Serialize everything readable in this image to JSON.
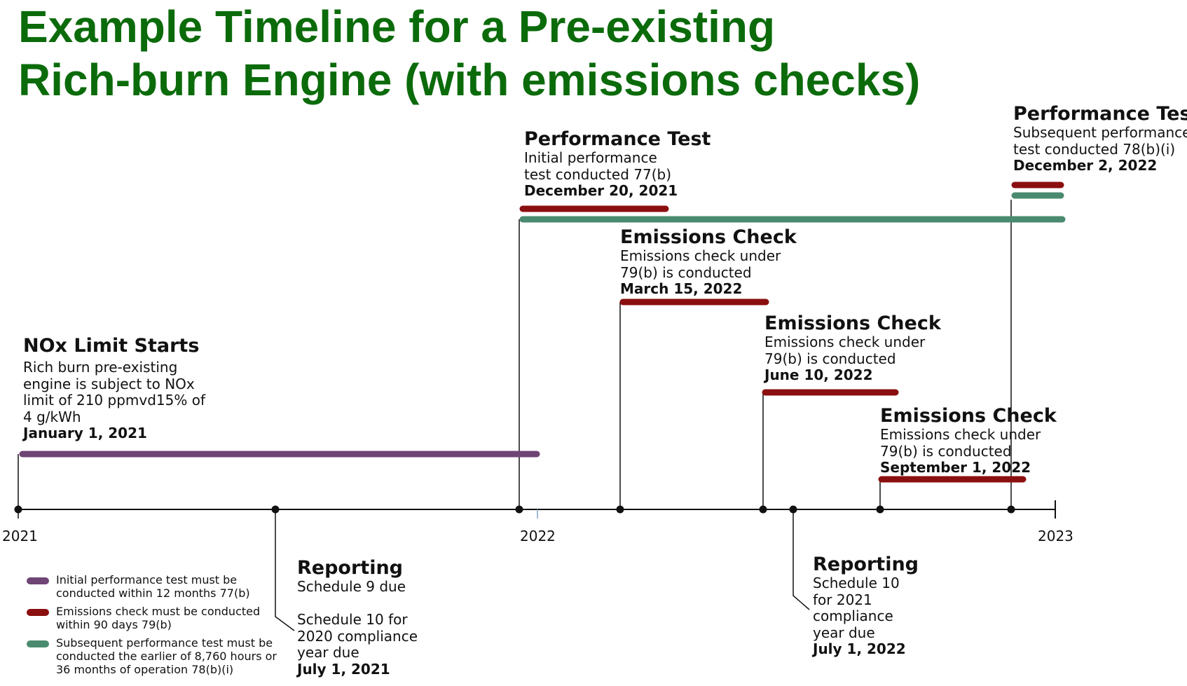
{
  "title": {
    "line1": "Example Timeline for a Pre-existing",
    "line2": "Rich-burn Engine (with emissions checks)"
  },
  "colors": {
    "title": "#0b6b0b",
    "purple": "#6e4574",
    "red": "#8b0f0f",
    "green": "#4a8a6e",
    "axis": "#111111"
  },
  "axis": {
    "ticks": [
      "2021",
      "2022",
      "2023"
    ]
  },
  "events": {
    "nox": {
      "heading": "NOx Limit Starts",
      "lines": [
        "Rich burn pre-existing",
        "engine is subject to NOx",
        "limit of 210 ppmvd15% of",
        "4 g/kWh"
      ],
      "date": "January 1, 2021"
    },
    "perf1": {
      "heading": "Performance Test",
      "lines": [
        "Initial performance",
        "test conducted 77(b)"
      ],
      "date": "December 20, 2021"
    },
    "check1": {
      "heading": "Emissions Check",
      "lines": [
        "Emissions check under",
        "79(b) is conducted"
      ],
      "date": "March 15, 2022"
    },
    "check2": {
      "heading": "Emissions Check",
      "lines": [
        "Emissions check under",
        "79(b) is conducted"
      ],
      "date": "June 10, 2022"
    },
    "check3": {
      "heading": "Emissions Check",
      "lines": [
        "Emissions check under",
        "79(b) is conducted"
      ],
      "date": "September 1, 2022"
    },
    "perf2": {
      "heading": "Performance Test",
      "lines": [
        "Subsequent performance",
        "test conducted 78(b)(i)"
      ],
      "date": "December 2, 2022"
    },
    "report1": {
      "heading": "Reporting",
      "lines": [
        "Schedule 9 due",
        "",
        "Schedule 10 for",
        "2020 compliance",
        "year due"
      ],
      "date": "July 1, 2021"
    },
    "report2": {
      "heading": "Reporting",
      "lines": [
        "Schedule 10",
        "for 2021",
        "compliance",
        "year due"
      ],
      "date": "July 1, 2022"
    }
  },
  "legend": [
    {
      "color": "purple",
      "text": "Initial performance test must be conducted within 12 months 77(b)"
    },
    {
      "color": "red",
      "text": "Emissions check must be conducted within 90 days 79(b)"
    },
    {
      "color": "green",
      "text": "Subsequent performance test must be conducted the earlier of 8,760 hours or 36 months of operation 78(b)(i)"
    }
  ]
}
